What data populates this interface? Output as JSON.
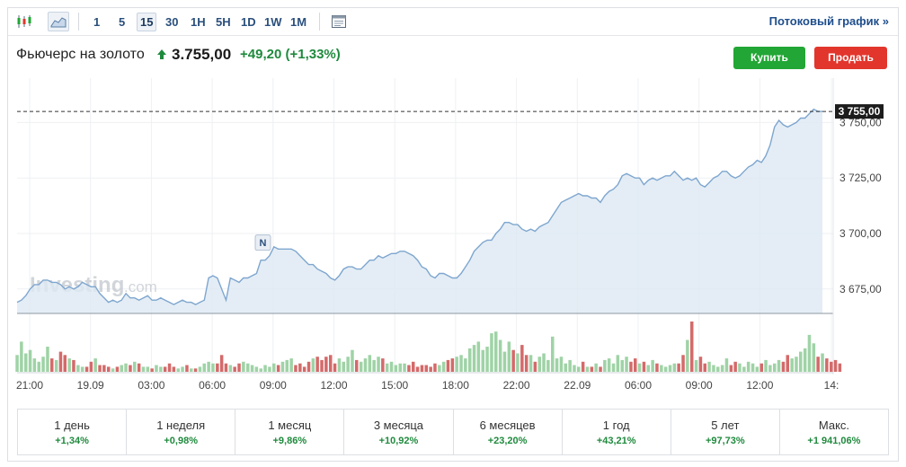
{
  "toolbar": {
    "icons": [
      "candlestick-icon",
      "area-chart-icon",
      "calendar-icon"
    ],
    "timeframes": [
      "1",
      "5",
      "15",
      "30",
      "1H",
      "5H",
      "1D",
      "1W",
      "1M"
    ],
    "active_timeframe": "15",
    "stream_link": "Потоковый график »"
  },
  "header": {
    "name": "Фьючерс на золото",
    "price": "3.755,00",
    "change": "+49,20",
    "change_pct": "(+1,33%)",
    "buy_label": "Купить",
    "sell_label": "Продать",
    "colors": {
      "up": "#1f8a3d",
      "buy": "#22a635",
      "sell": "#e2362c"
    }
  },
  "watermark": {
    "brand": "Investing",
    "suffix": ".com"
  },
  "chart_data": {
    "type": "area",
    "price_tag": "3 755,00",
    "event_marker": {
      "label": "N",
      "x": "08:30"
    },
    "x_tick_labels": [
      "21:00",
      "19.09",
      "03:00",
      "06:00",
      "09:00",
      "12:00",
      "15:00",
      "18:00",
      "22:00",
      "22.09",
      "06:00",
      "09:00",
      "12:00",
      "14:"
    ],
    "y_tick_values": [
      3675,
      3700,
      3725,
      3750
    ],
    "y_tick_labels": [
      "3 675,00",
      "3 700,00",
      "3 725,00",
      "3 750,00"
    ],
    "ylim": [
      3664,
      3770
    ],
    "last_value": 3755,
    "price": [
      3669,
      3670,
      3672,
      3675,
      3677,
      3677,
      3679,
      3679,
      3678,
      3678,
      3677,
      3675,
      3676,
      3675,
      3676,
      3678,
      3677,
      3676,
      3676,
      3673,
      3671,
      3669,
      3670,
      3669,
      3670,
      3673,
      3671,
      3671,
      3670,
      3671,
      3672,
      3670,
      3670,
      3671,
      3670,
      3669,
      3668,
      3669,
      3670,
      3669,
      3669,
      3668,
      3669,
      3670,
      3680,
      3681,
      3680,
      3675,
      3670,
      3680,
      3679,
      3678,
      3680,
      3680,
      3681,
      3682,
      3688,
      3688,
      3690,
      3694,
      3693,
      3693,
      3693,
      3693,
      3692,
      3690,
      3688,
      3686,
      3686,
      3684,
      3683,
      3682,
      3680,
      3679,
      3681,
      3684,
      3685,
      3685,
      3684,
      3684,
      3686,
      3688,
      3688,
      3690,
      3689,
      3690,
      3691,
      3691,
      3692,
      3692,
      3691,
      3690,
      3688,
      3685,
      3684,
      3681,
      3680,
      3682,
      3682,
      3681,
      3680,
      3680,
      3682,
      3685,
      3688,
      3692,
      3694,
      3696,
      3697,
      3697,
      3700,
      3702,
      3705,
      3705,
      3704,
      3704,
      3702,
      3701,
      3702,
      3701,
      3703,
      3704,
      3705,
      3708,
      3711,
      3714,
      3715,
      3716,
      3717,
      3718,
      3717,
      3717,
      3716,
      3716,
      3714,
      3717,
      3719,
      3720,
      3722,
      3726,
      3727,
      3726,
      3725,
      3725,
      3722,
      3724,
      3725,
      3724,
      3725,
      3726,
      3726,
      3728,
      3726,
      3724,
      3725,
      3724,
      3725,
      3722,
      3721,
      3723,
      3725,
      3726,
      3728,
      3728,
      3726,
      3725,
      3726,
      3728,
      3730,
      3731,
      3733,
      3732,
      3735,
      3740,
      3748,
      3751,
      3749,
      3748,
      3749,
      3750,
      3752,
      3752,
      3754,
      3756,
      3755,
      3755
    ],
    "volume": [
      10,
      18,
      11,
      13,
      8,
      6,
      9,
      15,
      8,
      7,
      12,
      10,
      8,
      7,
      4,
      3,
      3,
      6,
      8,
      4,
      4,
      3,
      2,
      3,
      4,
      5,
      4,
      6,
      5,
      3,
      3,
      2,
      4,
      3,
      3,
      5,
      3,
      2,
      3,
      4,
      2,
      2,
      3,
      5,
      6,
      5,
      5,
      10,
      5,
      4,
      3,
      5,
      6,
      5,
      4,
      3,
      2,
      4,
      3,
      5,
      4,
      6,
      7,
      8,
      4,
      5,
      3,
      6,
      8,
      9,
      7,
      9,
      10,
      5,
      8,
      6,
      9,
      13,
      7,
      6,
      8,
      10,
      7,
      9,
      8,
      5,
      6,
      4,
      5,
      5,
      4,
      6,
      3,
      4,
      4,
      3,
      5,
      4,
      6,
      7,
      8,
      9,
      10,
      8,
      14,
      16,
      18,
      13,
      15,
      23,
      24,
      19,
      12,
      18,
      13,
      11,
      16,
      10,
      10,
      6,
      9,
      11,
      7,
      21,
      8,
      9,
      5,
      7,
      4,
      3,
      6,
      3,
      3,
      5,
      3,
      7,
      8,
      5,
      10,
      7,
      9,
      6,
      8,
      5,
      6,
      4,
      7,
      5,
      4,
      3,
      4,
      5,
      5,
      10,
      19,
      30,
      7,
      9,
      5,
      6,
      4,
      3,
      4,
      8,
      4,
      6,
      5,
      3,
      6,
      5,
      3,
      5,
      7,
      4,
      5,
      7,
      6,
      10,
      8,
      9,
      12,
      14,
      22,
      17,
      9,
      11,
      8,
      6,
      7,
      5
    ],
    "grid": true
  },
  "periods": [
    {
      "label": "1 день",
      "value": "+1,34%"
    },
    {
      "label": "1 неделя",
      "value": "+0,98%"
    },
    {
      "label": "1 месяц",
      "value": "+9,86%"
    },
    {
      "label": "3 месяца",
      "value": "+10,92%"
    },
    {
      "label": "6 месяцев",
      "value": "+23,20%"
    },
    {
      "label": "1 год",
      "value": "+43,21%"
    },
    {
      "label": "5 лет",
      "value": "+97,73%"
    },
    {
      "label": "Макс.",
      "value": "+1 941,06%"
    }
  ]
}
